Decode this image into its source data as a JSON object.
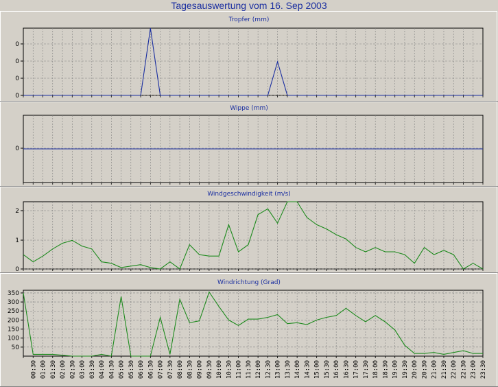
{
  "page_title": "Tagesauswertung vom 16. Sep 2003",
  "colors": {
    "blue": "#1a2ea0",
    "green": "#1d8a1d",
    "grid": "#808080",
    "background": "#d4d0c8"
  },
  "chart_data": [
    {
      "type": "line",
      "title": "Tropfer (mm)",
      "x": [
        "00:00",
        "00:30",
        "01:00",
        "01:30",
        "02:00",
        "02:30",
        "03:00",
        "03:30",
        "04:00",
        "04:30",
        "05:00",
        "05:30",
        "06:00",
        "06:30",
        "07:00",
        "07:30",
        "08:00",
        "08:30",
        "09:00",
        "09:30",
        "10:00",
        "10:30",
        "11:00",
        "11:30",
        "12:00",
        "12:30",
        "13:00",
        "13:30",
        "14:00",
        "14:30",
        "15:00",
        "15:30",
        "16:00",
        "16:30",
        "17:00",
        "17:30",
        "18:00",
        "18:30",
        "19:00",
        "19:30",
        "20:00",
        "20:30",
        "21:00",
        "21:30",
        "22:00",
        "22:30",
        "23:00",
        "23:30"
      ],
      "yticks": [
        "0",
        "0",
        "0",
        "0"
      ],
      "ylim": [
        0,
        1
      ],
      "series": [
        {
          "values": [
            0,
            0,
            0,
            0,
            0,
            0,
            0,
            0,
            0,
            0,
            0,
            0,
            0,
            1,
            0,
            0,
            0,
            0,
            0,
            0,
            0,
            0,
            0,
            0,
            0,
            0,
            0.5,
            0,
            0,
            0,
            0,
            0,
            0,
            0,
            0,
            0,
            0,
            0,
            0,
            0,
            0,
            0,
            0,
            0,
            0,
            0,
            0,
            0
          ]
        }
      ]
    },
    {
      "type": "line",
      "title": "Wippe (mm)",
      "yticks": [
        "0"
      ],
      "ylim": [
        -1,
        1
      ],
      "series": [
        {
          "values": [
            0,
            0,
            0,
            0,
            0,
            0,
            0,
            0,
            0,
            0,
            0,
            0,
            0,
            0,
            0,
            0,
            0,
            0,
            0,
            0,
            0,
            0,
            0,
            0,
            0,
            0,
            0,
            0,
            0,
            0,
            0,
            0,
            0,
            0,
            0,
            0,
            0,
            0,
            0,
            0,
            0,
            0,
            0,
            0,
            0,
            0,
            0,
            0
          ]
        }
      ]
    },
    {
      "type": "line",
      "title": "Windgeschwindigkeit (m/s)",
      "yticks": [
        "0",
        "1",
        "2"
      ],
      "ylim": [
        0,
        2.35
      ],
      "series": [
        {
          "values": [
            0.5,
            0.25,
            0.45,
            0.7,
            0.9,
            1.0,
            0.8,
            0.7,
            0.25,
            0.2,
            0.05,
            0.1,
            0.15,
            0.05,
            0,
            0.25,
            0,
            0.85,
            0.5,
            0.45,
            0.45,
            1.55,
            0.6,
            0.85,
            1.9,
            2.1,
            1.6,
            2.35,
            2.35,
            1.8,
            1.55,
            1.4,
            1.2,
            1.05,
            0.75,
            0.6,
            0.75,
            0.6,
            0.6,
            0.5,
            0.2,
            0.75,
            0.5,
            0.65,
            0.5,
            0,
            0.2,
            0
          ]
        }
      ]
    },
    {
      "type": "line",
      "title": "Windrichtung (Grad)",
      "yticks": [
        "50",
        "100",
        "150",
        "200",
        "250",
        "300",
        "350"
      ],
      "ylim": [
        0,
        365
      ],
      "series": [
        {
          "values": [
            350,
            10,
            10,
            10,
            5,
            0,
            0,
            0,
            10,
            0,
            330,
            0,
            0,
            0,
            215,
            10,
            315,
            185,
            195,
            355,
            275,
            200,
            170,
            205,
            205,
            215,
            230,
            180,
            185,
            175,
            200,
            215,
            225,
            265,
            225,
            190,
            225,
            190,
            145,
            60,
            15,
            15,
            20,
            10,
            20,
            30,
            15,
            15
          ]
        }
      ]
    }
  ]
}
